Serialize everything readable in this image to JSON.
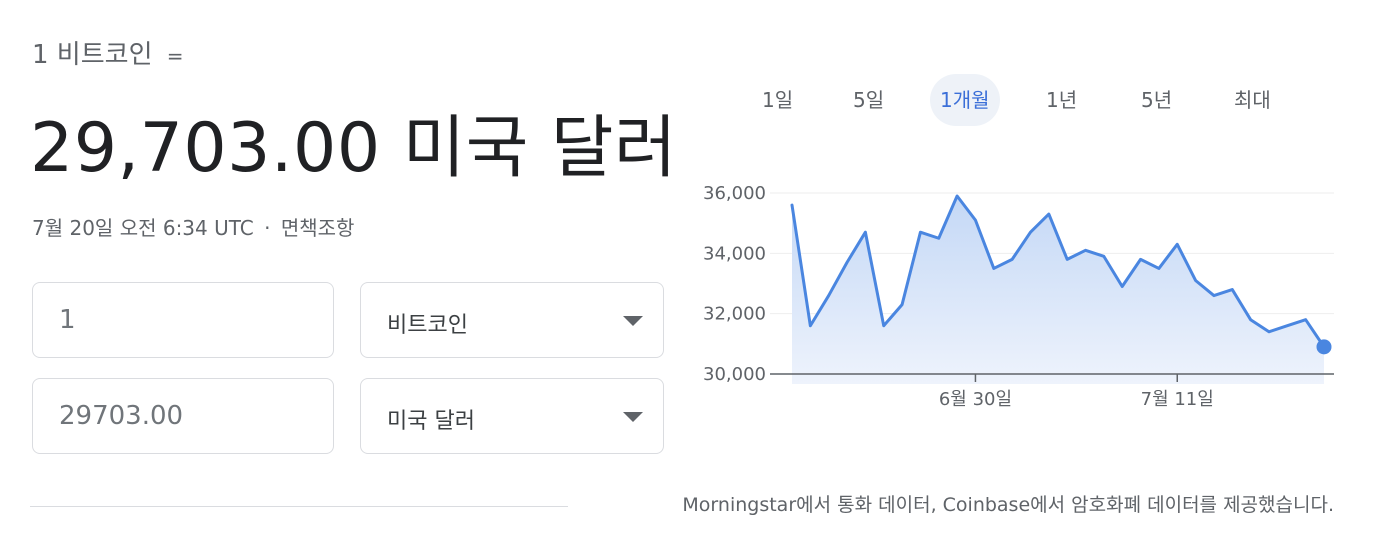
{
  "header": {
    "source_amount_label": "1 비트코인",
    "equals_sign": "=",
    "converted_value": "29,703.00 미국 달러",
    "date_text": "7월 20일 오전 6:34 UTC",
    "separator": "·",
    "disclaimer_link": "면책조항"
  },
  "converter": {
    "from_amount": "1",
    "from_currency": "비트코인",
    "to_amount": "29703.00",
    "to_currency": "미국 달러"
  },
  "range_tabs": [
    {
      "label": "1일",
      "active": false
    },
    {
      "label": "5일",
      "active": false
    },
    {
      "label": "1개월",
      "active": true
    },
    {
      "label": "1년",
      "active": false
    },
    {
      "label": "5년",
      "active": false
    },
    {
      "label": "최대",
      "active": false
    }
  ],
  "footer": {
    "credit": "Morningstar에서 통화 데이터, Coinbase에서 암호화폐 데이터를 제공했습니다."
  },
  "colors": {
    "accent": "#4285f4",
    "active_tab_text": "#3b6fd8",
    "line": "#4a86e0"
  },
  "chart_data": {
    "type": "area",
    "title": "",
    "xlabel": "",
    "ylabel": "",
    "ylim": [
      30000,
      36000
    ],
    "yticks": [
      "30,000",
      "32,000",
      "34,000",
      "36,000"
    ],
    "ytick_values": [
      30000,
      32000,
      34000,
      36000
    ],
    "xticks": [
      "6월 30일",
      "7월 11일"
    ],
    "xtick_index": [
      10,
      21
    ],
    "grid": true,
    "series": [
      {
        "values": [
          35600,
          31600,
          32600,
          33700,
          34700,
          31600,
          32300,
          34700,
          34500,
          35900,
          35100,
          33500,
          33800,
          34700,
          35300,
          33800,
          34100,
          33900,
          32900,
          33800,
          33500,
          34300,
          33100,
          32600,
          32800,
          31800,
          31400,
          31600,
          31800,
          30900
        ]
      }
    ]
  }
}
